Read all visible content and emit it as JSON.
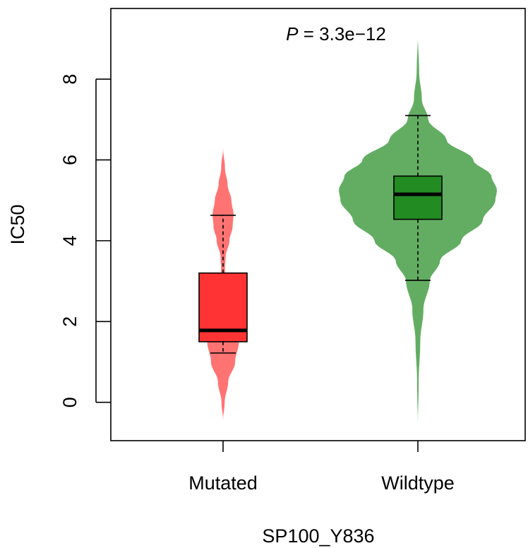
{
  "chart_data": {
    "type": "violin",
    "xlabel": "SP100_Y836",
    "ylabel": "IC50",
    "annotation": {
      "p_symbol": "P",
      "p_rest": " = 3.3e−12"
    },
    "ylim": [
      -0.95,
      9.75
    ],
    "y_ticks": [
      0,
      2,
      4,
      6,
      8
    ],
    "y_tick_labels": [
      "0",
      "2",
      "4",
      "6",
      "8"
    ],
    "categories": [
      "Mutated",
      "Wildtype"
    ],
    "groups": [
      {
        "name": "Mutated",
        "violin_color": "#ff7373",
        "box_color": "#ff3333",
        "violin_range": [
          -0.45,
          6.3
        ],
        "violin_profile": [
          [
            -0.45,
            0.0
          ],
          [
            0.0,
            0.05
          ],
          [
            0.5,
            0.16
          ],
          [
            1.0,
            0.38
          ],
          [
            1.5,
            0.5
          ],
          [
            1.9,
            0.42
          ],
          [
            2.4,
            0.28
          ],
          [
            2.9,
            0.12
          ],
          [
            3.3,
            0.06
          ],
          [
            3.6,
            0.08
          ],
          [
            4.0,
            0.2
          ],
          [
            4.35,
            0.3
          ],
          [
            4.65,
            0.33
          ],
          [
            5.0,
            0.26
          ],
          [
            5.4,
            0.14
          ],
          [
            5.8,
            0.06
          ],
          [
            6.3,
            0.0
          ]
        ],
        "box": {
          "whisker_low": 1.22,
          "q1": 1.5,
          "median": 1.78,
          "q3": 3.2,
          "whisker_high": 4.63
        }
      },
      {
        "name": "Wildtype",
        "violin_color": "#63ad63",
        "box_color": "#228b22",
        "violin_range": [
          -0.6,
          9.1
        ],
        "violin_profile": [
          [
            -0.6,
            0.0
          ],
          [
            0.5,
            0.01
          ],
          [
            1.5,
            0.03
          ],
          [
            2.3,
            0.07
          ],
          [
            3.0,
            0.15
          ],
          [
            3.5,
            0.28
          ],
          [
            4.0,
            0.55
          ],
          [
            4.5,
            0.82
          ],
          [
            5.0,
            0.98
          ],
          [
            5.25,
            1.0
          ],
          [
            5.6,
            0.93
          ],
          [
            6.0,
            0.7
          ],
          [
            6.5,
            0.36
          ],
          [
            7.0,
            0.13
          ],
          [
            7.5,
            0.05
          ],
          [
            8.2,
            0.015
          ],
          [
            9.1,
            0.0
          ]
        ],
        "box": {
          "whisker_low": 3.02,
          "q1": 4.53,
          "median": 5.15,
          "q3": 5.6,
          "whisker_high": 7.1
        }
      }
    ],
    "grid": false,
    "legend": "none"
  }
}
